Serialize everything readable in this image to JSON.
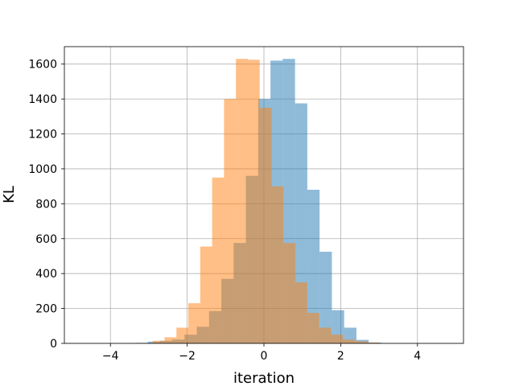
{
  "chart_data": {
    "type": "bar",
    "subtype": "overlaid-histogram",
    "xlabel": "iteration",
    "ylabel": "KL",
    "xlim": [
      -5.2,
      5.2
    ],
    "ylim": [
      0,
      1700
    ],
    "xticks": [
      -4,
      -2,
      0,
      2,
      4
    ],
    "yticks": [
      0,
      200,
      400,
      600,
      800,
      1000,
      1200,
      1400,
      1600
    ],
    "grid": true,
    "series": [
      {
        "color": "#1f77b4",
        "alpha": 0.5,
        "bins": [
          {
            "x0": -3.35,
            "x1": -3.03,
            "value": 3
          },
          {
            "x0": -3.03,
            "x1": -2.71,
            "value": 10
          },
          {
            "x0": -2.71,
            "x1": -2.39,
            "value": 15
          },
          {
            "x0": -2.39,
            "x1": -2.07,
            "value": 22
          },
          {
            "x0": -2.07,
            "x1": -1.75,
            "value": 50
          },
          {
            "x0": -1.75,
            "x1": -1.43,
            "value": 95
          },
          {
            "x0": -1.43,
            "x1": -1.11,
            "value": 185
          },
          {
            "x0": -1.11,
            "x1": -0.79,
            "value": 370
          },
          {
            "x0": -0.79,
            "x1": -0.47,
            "value": 575
          },
          {
            "x0": -0.47,
            "x1": -0.15,
            "value": 960
          },
          {
            "x0": -0.15,
            "x1": 0.17,
            "value": 1400
          },
          {
            "x0": 0.17,
            "x1": 0.49,
            "value": 1620
          },
          {
            "x0": 0.49,
            "x1": 0.81,
            "value": 1630
          },
          {
            "x0": 0.81,
            "x1": 1.13,
            "value": 1375
          },
          {
            "x0": 1.13,
            "x1": 1.45,
            "value": 880
          },
          {
            "x0": 1.45,
            "x1": 1.77,
            "value": 525
          },
          {
            "x0": 1.77,
            "x1": 2.09,
            "value": 190
          },
          {
            "x0": 2.09,
            "x1": 2.41,
            "value": 90
          },
          {
            "x0": 2.41,
            "x1": 2.73,
            "value": 20
          },
          {
            "x0": 2.73,
            "x1": 3.05,
            "value": 5
          }
        ]
      },
      {
        "color": "#ff7f0e",
        "alpha": 0.5,
        "bins": [
          {
            "x0": -4.7,
            "x1": -2.9,
            "value": 1
          },
          {
            "x0": -2.9,
            "x1": -2.59,
            "value": 15
          },
          {
            "x0": -2.59,
            "x1": -2.28,
            "value": 35
          },
          {
            "x0": -2.28,
            "x1": -1.97,
            "value": 90
          },
          {
            "x0": -1.97,
            "x1": -1.66,
            "value": 230
          },
          {
            "x0": -1.66,
            "x1": -1.35,
            "value": 555
          },
          {
            "x0": -1.35,
            "x1": -1.04,
            "value": 950
          },
          {
            "x0": -1.04,
            "x1": -0.73,
            "value": 1400
          },
          {
            "x0": -0.73,
            "x1": -0.42,
            "value": 1630
          },
          {
            "x0": -0.42,
            "x1": -0.11,
            "value": 1625
          },
          {
            "x0": -0.11,
            "x1": 0.2,
            "value": 1350
          },
          {
            "x0": 0.2,
            "x1": 0.51,
            "value": 900
          },
          {
            "x0": 0.51,
            "x1": 0.82,
            "value": 575
          },
          {
            "x0": 0.82,
            "x1": 1.13,
            "value": 350
          },
          {
            "x0": 1.13,
            "x1": 1.44,
            "value": 175
          },
          {
            "x0": 1.44,
            "x1": 1.75,
            "value": 90
          },
          {
            "x0": 1.75,
            "x1": 2.06,
            "value": 50
          },
          {
            "x0": 2.06,
            "x1": 2.37,
            "value": 22
          },
          {
            "x0": 2.37,
            "x1": 2.68,
            "value": 12
          },
          {
            "x0": 2.68,
            "x1": 2.99,
            "value": 5
          },
          {
            "x0": 2.99,
            "x1": 4.8,
            "value": 1
          }
        ]
      }
    ]
  }
}
